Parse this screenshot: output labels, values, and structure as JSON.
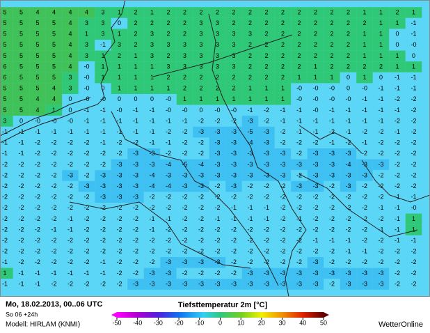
{
  "header": {
    "date": "Mo, 18.02.2013, 00..06 UTC",
    "run": "So 06 +24h",
    "model": "Modell: HIRLAM (KNMI)",
    "title": "Tiefsttemperatur 2m [°C]",
    "brand": "WetterOnline"
  },
  "colorbar": {
    "ticks": [
      -50,
      -40,
      -30,
      -20,
      -10,
      0,
      10,
      20,
      30,
      40,
      50
    ]
  },
  "grid": {
    "rows": [
      [
        "5",
        "5",
        "4",
        "4",
        "4",
        "4",
        "3",
        "1",
        "2",
        "1",
        "2",
        "2",
        "2",
        "2",
        "2",
        "2",
        "2",
        "2",
        "2",
        "2",
        "2",
        "2",
        "1",
        "1",
        "2",
        "1"
      ],
      [
        "5",
        "5",
        "5",
        "5",
        "4",
        "3",
        "3",
        "0",
        "2",
        "2",
        "2",
        "2",
        "3",
        "3",
        "2",
        "2",
        "2",
        "2",
        "2",
        "2",
        "2",
        "2",
        "2",
        "1",
        "1",
        "-1"
      ],
      [
        "5",
        "5",
        "5",
        "5",
        "4",
        "1",
        "3",
        "1",
        "2",
        "3",
        "2",
        "2",
        "3",
        "3",
        "3",
        "3",
        "2",
        "2",
        "2",
        "2",
        "2",
        "2",
        "1",
        "1",
        "0",
        "-1"
      ],
      [
        "5",
        "5",
        "5",
        "5",
        "4",
        "3",
        "-1",
        "3",
        "2",
        "3",
        "3",
        "3",
        "3",
        "3",
        "3",
        "2",
        "2",
        "2",
        "2",
        "2",
        "2",
        "2",
        "1",
        "1",
        "0",
        "-0"
      ],
      [
        "5",
        "5",
        "5",
        "5",
        "4",
        "3",
        "1",
        "2",
        "1",
        "3",
        "2",
        "3",
        "3",
        "3",
        "3",
        "2",
        "2",
        "2",
        "2",
        "2",
        "2",
        "2",
        "1",
        "1",
        "1",
        "0"
      ],
      [
        "6",
        "5",
        "5",
        "5",
        "4",
        "-0",
        "1",
        "1",
        "1",
        "1",
        "3",
        "3",
        "3",
        "3",
        "3",
        "2",
        "2",
        "2",
        "2",
        "1",
        "2",
        "2",
        "2",
        "2",
        "1",
        "1"
      ],
      [
        "6",
        "5",
        "5",
        "5",
        "3",
        "-0",
        "1",
        "1",
        "1",
        "1",
        "2",
        "2",
        "2",
        "2",
        "2",
        "2",
        "2",
        "2",
        "1",
        "1",
        "1",
        "0",
        "1",
        "0",
        "-1",
        "-1"
      ],
      [
        "5",
        "5",
        "5",
        "4",
        "3",
        "-0",
        "0",
        "1",
        "1",
        "1",
        "1",
        "2",
        "2",
        "2",
        "2",
        "1",
        "1",
        "1",
        "-0",
        "-0",
        "-0",
        "0",
        "-0",
        "-1",
        "-1",
        "-1"
      ],
      [
        "5",
        "5",
        "4",
        "4",
        "0",
        "-0",
        "-0",
        "0",
        "0",
        "0",
        "-0",
        "1",
        "1",
        "1",
        "1",
        "1",
        "1",
        "1",
        "-0",
        "-0",
        "-0",
        "-0",
        "-1",
        "-1",
        "-2",
        "-2"
      ],
      [
        "5",
        "5",
        "4",
        "1",
        "0",
        "-1",
        "-1",
        "-0",
        "-1",
        "-1",
        "-0",
        "-0",
        "0",
        "-0",
        "-0",
        "-1",
        "-2",
        "-1",
        "-1",
        "-0",
        "-1",
        "-1",
        "-1",
        "-1",
        "-1",
        "-2"
      ],
      [
        "3",
        "0",
        "-0",
        "-0",
        "-0",
        "-1",
        "-1",
        "-1",
        "-1",
        "-1",
        "-1",
        "-1",
        "-2",
        "-2",
        "-2",
        "-3",
        "-2",
        "-1",
        "-1",
        "-1",
        "-1",
        "-1",
        "-1",
        "-1",
        "-2",
        "-2"
      ],
      [
        "-1",
        "-1",
        "-1",
        "-1",
        "-1",
        "-1",
        "-1",
        "-1",
        "-1",
        "-1",
        "-2",
        "-2",
        "-3",
        "-3",
        "-3",
        "-5",
        "-3",
        "-2",
        "-1",
        "-1",
        "-2",
        "-1",
        "-2",
        "-2",
        "-1",
        "-2"
      ],
      [
        "-1",
        "-1",
        "-2",
        "-2",
        "-2",
        "-2",
        "-1",
        "-2",
        "-2",
        "-1",
        "-1",
        "-2",
        "-2",
        "-3",
        "-3",
        "-4",
        "-3",
        "-2",
        "-2",
        "-2",
        "-1",
        "-2",
        "-1",
        "-2",
        "-2",
        "-2"
      ],
      [
        "-1",
        "-1",
        "-2",
        "-2",
        "-2",
        "-2",
        "-2",
        "-2",
        "-3",
        "-3",
        "-2",
        "-2",
        "-2",
        "-3",
        "-3",
        "-3",
        "-3",
        "-3",
        "-2",
        "-3",
        "-3",
        "-3",
        "-2",
        "-2",
        "-2",
        "-2"
      ],
      [
        "-2",
        "-2",
        "-2",
        "-2",
        "-2",
        "-2",
        "-2",
        "-3",
        "-3",
        "-3",
        "-4",
        "-5",
        "-4",
        "-3",
        "-3",
        "-3",
        "-3",
        "-3",
        "-3",
        "-3",
        "-3",
        "-4",
        "-3",
        "-3",
        "-2",
        "-2"
      ],
      [
        "-2",
        "-2",
        "-2",
        "-2",
        "-3",
        "-2",
        "-3",
        "-3",
        "-3",
        "-4",
        "-3",
        "-3",
        "-3",
        "-3",
        "-3",
        "-3",
        "-3",
        "-3",
        "-2",
        "-3",
        "-3",
        "-3",
        "-3",
        "-2",
        "-2",
        "-2"
      ],
      [
        "-2",
        "-2",
        "-2",
        "-2",
        "-2",
        "-3",
        "-3",
        "-3",
        "-3",
        "-4",
        "-4",
        "-3",
        "-3",
        "-2",
        "-3",
        "-2",
        "-2",
        "-2",
        "-3",
        "-3",
        "-2",
        "-3",
        "-2",
        "-2",
        "-2",
        "-2"
      ],
      [
        "-2",
        "-2",
        "-2",
        "-2",
        "-2",
        "-2",
        "-3",
        "-3",
        "-3",
        "-2",
        "-2",
        "-2",
        "-2",
        "-2",
        "-2",
        "-2",
        "-2",
        "-2",
        "-2",
        "-2",
        "-2",
        "-2",
        "-2",
        "-2",
        "-1",
        "-1"
      ],
      [
        "-2",
        "-2",
        "-2",
        "-2",
        "-2",
        "-2",
        "-2",
        "-2",
        "-2",
        "-2",
        "-2",
        "-2",
        "-2",
        "-2",
        "-1",
        "-1",
        "-1",
        "-2",
        "-2",
        "-2",
        "-2",
        "-2",
        "-2",
        "-1",
        "-1",
        "-0"
      ],
      [
        "-2",
        "-2",
        "-2",
        "-2",
        "-1",
        "-2",
        "-2",
        "-2",
        "-2",
        "-1",
        "-1",
        "-2",
        "-2",
        "-1",
        "-1",
        "-1",
        "-1",
        "-2",
        "-1",
        "-2",
        "-2",
        "-2",
        "-2",
        "-2",
        "-1",
        "1"
      ],
      [
        "-2",
        "-2",
        "-2",
        "-1",
        "-1",
        "-2",
        "-2",
        "-2",
        "-2",
        "-1",
        "-2",
        "-2",
        "-2",
        "-2",
        "-2",
        "-2",
        "-2",
        "-2",
        "-2",
        "-2",
        "-2",
        "-2",
        "-2",
        "-1",
        "-1",
        "1"
      ],
      [
        "-2",
        "-2",
        "-2",
        "-2",
        "-2",
        "-2",
        "-2",
        "-2",
        "-2",
        "-2",
        "-2",
        "-2",
        "-2",
        "-2",
        "-2",
        "-2",
        "-2",
        "-2",
        "-2",
        "-1",
        "-1",
        "-1",
        "-2",
        "-2",
        "-1",
        "-1"
      ],
      [
        "-2",
        "-2",
        "-2",
        "-2",
        "-2",
        "-2",
        "-2",
        "-2",
        "-2",
        "-2",
        "-2",
        "-2",
        "-2",
        "-2",
        "-2",
        "-2",
        "-2",
        "-2",
        "-2",
        "-2",
        "-2",
        "-1",
        "-1",
        "-2",
        "-2",
        "-2"
      ],
      [
        "-1",
        "-2",
        "-2",
        "-2",
        "-2",
        "-2",
        "-1",
        "-2",
        "-2",
        "-2",
        "-3",
        "-3",
        "-3",
        "-3",
        "-2",
        "-2",
        "-2",
        "-2",
        "-2",
        "-3",
        "-2",
        "-2",
        "-2",
        "-2",
        "-2",
        "-2"
      ],
      [
        "1",
        "-1",
        "-1",
        "-1",
        "-1",
        "-1",
        "-1",
        "-2",
        "-2",
        "-3",
        "-3",
        "-2",
        "-2",
        "-2",
        "-2",
        "-3",
        "-3",
        "-3",
        "-3",
        "-3",
        "-3",
        "-3",
        "-3",
        "-3",
        "-2",
        "-2"
      ],
      [
        "-1",
        "-1",
        "-1",
        "-2",
        "-2",
        "-2",
        "-2",
        "-2",
        "-3",
        "-3",
        "-3",
        "-3",
        "-3",
        "-3",
        "-3",
        "-3",
        "-3",
        "-3",
        "-3",
        "-3",
        "-2",
        "-3",
        "-3",
        "-3",
        "-2",
        "-2"
      ]
    ]
  }
}
